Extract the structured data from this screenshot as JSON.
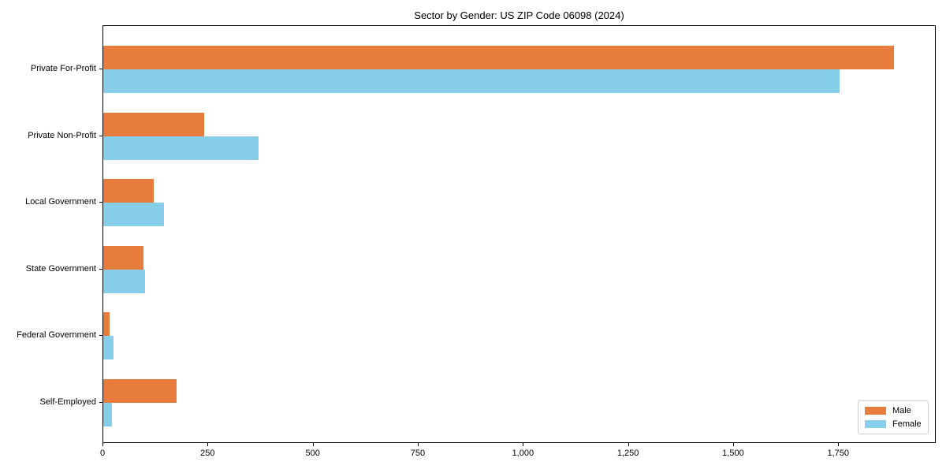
{
  "title": "Sector by Gender: US ZIP Code 06098 (2024)",
  "colors": {
    "male": "#E87C3C",
    "female": "#87CEEB",
    "axis": "#000000",
    "legend_border": "#cccccc",
    "background": "#ffffff"
  },
  "legend": {
    "position": "lower right",
    "items": [
      {
        "label": "Male",
        "color": "#E87C3C"
      },
      {
        "label": "Female",
        "color": "#87CEEB"
      }
    ]
  },
  "chart_data": {
    "type": "bar",
    "orientation": "horizontal",
    "title": "Sector by Gender: US ZIP Code 06098 (2024)",
    "xlabel": "",
    "ylabel": "",
    "categories": [
      "Private For-Profit",
      "Private Non-Profit",
      "Local Government",
      "State Government",
      "Federal Government",
      "Self-Employed"
    ],
    "series": [
      {
        "name": "Male",
        "color": "#E87C3C",
        "values": [
          1885,
          240,
          120,
          95,
          15,
          175
        ]
      },
      {
        "name": "Female",
        "color": "#87CEEB",
        "values": [
          1755,
          370,
          145,
          100,
          25,
          20
        ]
      }
    ],
    "xlim": [
      0,
      1982
    ],
    "xticks": [
      0,
      250,
      500,
      750,
      1000,
      1250,
      1500,
      1750
    ],
    "xtick_labels": [
      "0",
      "250",
      "500",
      "750",
      "1,000",
      "1,250",
      "1,500",
      "1,750"
    ],
    "grid": false,
    "legend_position": "lower right"
  }
}
